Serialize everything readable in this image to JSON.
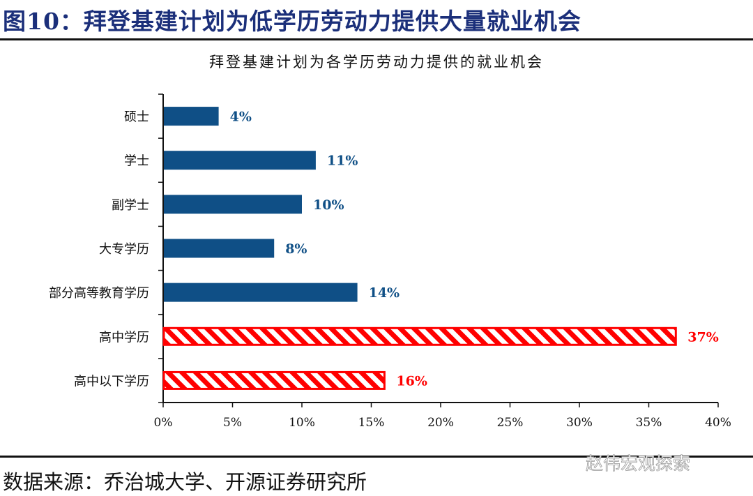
{
  "figure_title": "图10：拜登基建计划为低学历劳动力提供大量就业机会",
  "source": "数据来源：乔治城大学、开源证券研究所",
  "watermark": "赵伟宏观探索",
  "chart_data": {
    "type": "bar",
    "orientation": "horizontal",
    "title": "拜登基建计划为各学历劳动力提供的就业机会",
    "categories": [
      "硕士",
      "学士",
      "副学士",
      "大专学历",
      "部分高等教育学历",
      "高中学历",
      "高中以下学历"
    ],
    "values": [
      4,
      11,
      10,
      8,
      14,
      37,
      16
    ],
    "data_labels": [
      "4%",
      "11%",
      "10%",
      "8%",
      "14%",
      "37%",
      "16%"
    ],
    "highlight": [
      false,
      false,
      false,
      false,
      false,
      true,
      true
    ],
    "xlim": [
      0,
      40
    ],
    "xticks": [
      0,
      5,
      10,
      15,
      20,
      25,
      30,
      35,
      40
    ],
    "xtick_labels": [
      "0%",
      "5%",
      "10%",
      "15%",
      "20%",
      "25%",
      "30%",
      "35%",
      "40%"
    ],
    "xlabel": "",
    "ylabel": "",
    "grid": false,
    "colors": {
      "normal": "#0f4f86",
      "highlight": "#ff0000"
    }
  }
}
